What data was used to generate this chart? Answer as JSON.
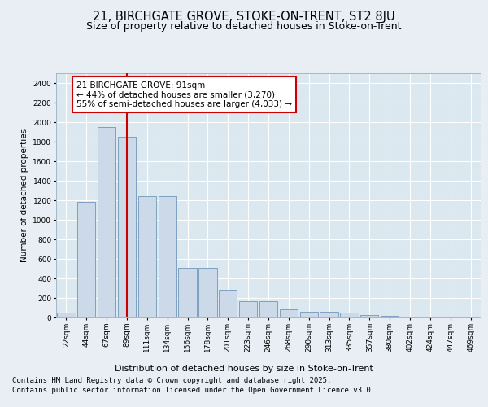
{
  "title1": "21, BIRCHGATE GROVE, STOKE-ON-TRENT, ST2 8JU",
  "title2": "Size of property relative to detached houses in Stoke-on-Trent",
  "xlabel": "Distribution of detached houses by size in Stoke-on-Trent",
  "ylabel": "Number of detached properties",
  "bins": [
    "22sqm",
    "44sqm",
    "67sqm",
    "89sqm",
    "111sqm",
    "134sqm",
    "156sqm",
    "178sqm",
    "201sqm",
    "223sqm",
    "246sqm",
    "268sqm",
    "290sqm",
    "313sqm",
    "335sqm",
    "357sqm",
    "380sqm",
    "402sqm",
    "424sqm",
    "447sqm",
    "469sqm"
  ],
  "values": [
    50,
    1180,
    1950,
    1850,
    1240,
    1240,
    510,
    510,
    280,
    165,
    165,
    80,
    60,
    55,
    50,
    25,
    20,
    10,
    5,
    3,
    2
  ],
  "bar_color": "#ccd9e8",
  "bar_edge_color": "#7096b8",
  "vline_x_index": 3,
  "vline_color": "#cc0000",
  "annotation_text": "21 BIRCHGATE GROVE: 91sqm\n← 44% of detached houses are smaller (3,270)\n55% of semi-detached houses are larger (4,033) →",
  "annotation_box_color": "#ffffff",
  "annotation_box_edge_color": "#cc0000",
  "ylim": [
    0,
    2500
  ],
  "yticks": [
    0,
    200,
    400,
    600,
    800,
    1000,
    1200,
    1400,
    1600,
    1800,
    2000,
    2200,
    2400
  ],
  "footnote1": "Contains HM Land Registry data © Crown copyright and database right 2025.",
  "footnote2": "Contains public sector information licensed under the Open Government Licence v3.0.",
  "bg_color": "#e8eef4",
  "plot_bg_color": "#dce8f0",
  "title1_fontsize": 10.5,
  "title2_fontsize": 9,
  "annotation_fontsize": 7.5,
  "ylabel_fontsize": 7.5,
  "xlabel_fontsize": 8,
  "tick_fontsize": 6.5,
  "footnote_fontsize": 6.5
}
